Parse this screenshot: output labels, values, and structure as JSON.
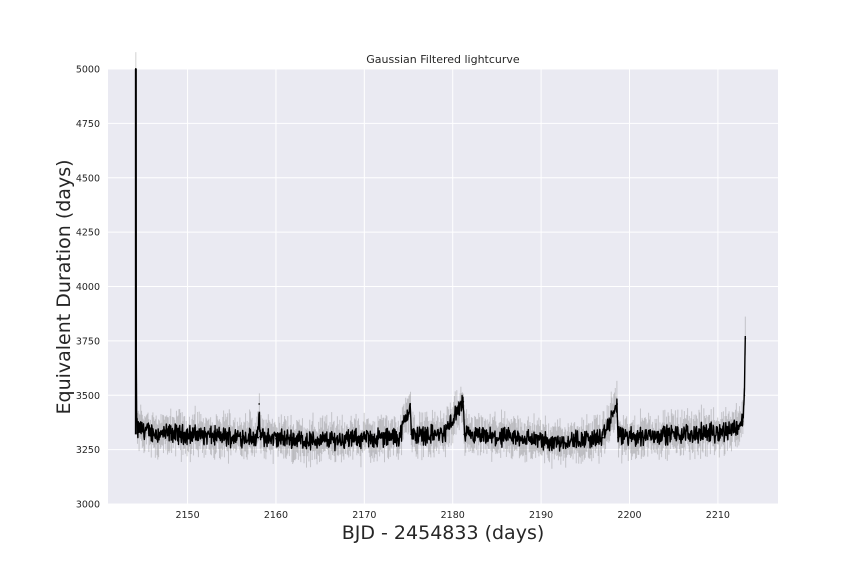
{
  "chart_data": {
    "type": "line",
    "title": "Gaussian Filtered lightcurve",
    "xlabel": "BJD - 2454833 (days)",
    "ylabel": "Equivalent Duration (days)",
    "xlim": [
      2141,
      2216.8
    ],
    "ylim": [
      3000,
      5000
    ],
    "xticks": [
      2150,
      2160,
      2170,
      2180,
      2190,
      2200,
      2210
    ],
    "yticks": [
      3000,
      3250,
      3500,
      3750,
      4000,
      4250,
      4500,
      4750,
      5000
    ],
    "grid": true,
    "background": "#eaeaf2",
    "grid_color": "#ffffff",
    "series": [
      {
        "color": "#000000",
        "x": [
          2144.15,
          2144.2,
          2144.25,
          2144.35,
          2144.5,
          2145,
          2146,
          2147,
          2148,
          2150,
          2152,
          2154,
          2156,
          2158,
          2158.1,
          2158.2,
          2160,
          2162,
          2164,
          2166,
          2168,
          2170,
          2172,
          2174,
          2175.2,
          2175.3,
          2175.4,
          2177,
          2179,
          2181.2,
          2181.3,
          2181.4,
          2183,
          2185,
          2187,
          2189,
          2191,
          2193,
          2195,
          2197,
          2198.6,
          2198.7,
          2198.8,
          2200,
          2202,
          2204,
          2206,
          2208,
          2210,
          2211,
          2212,
          2212.8,
          2213.0,
          2213.1
        ],
        "y": [
          5000,
          3550,
          3380,
          3330,
          3350,
          3340,
          3330,
          3320,
          3325,
          3320,
          3315,
          3310,
          3310,
          3305,
          3460,
          3310,
          3300,
          3300,
          3290,
          3295,
          3300,
          3300,
          3305,
          3310,
          3460,
          3320,
          3315,
          3320,
          3320,
          3470,
          3320,
          3315,
          3310,
          3305,
          3305,
          3300,
          3285,
          3290,
          3300,
          3305,
          3460,
          3305,
          3310,
          3310,
          3315,
          3320,
          3320,
          3325,
          3330,
          3340,
          3350,
          3380,
          3500,
          3760
        ]
      }
    ]
  }
}
